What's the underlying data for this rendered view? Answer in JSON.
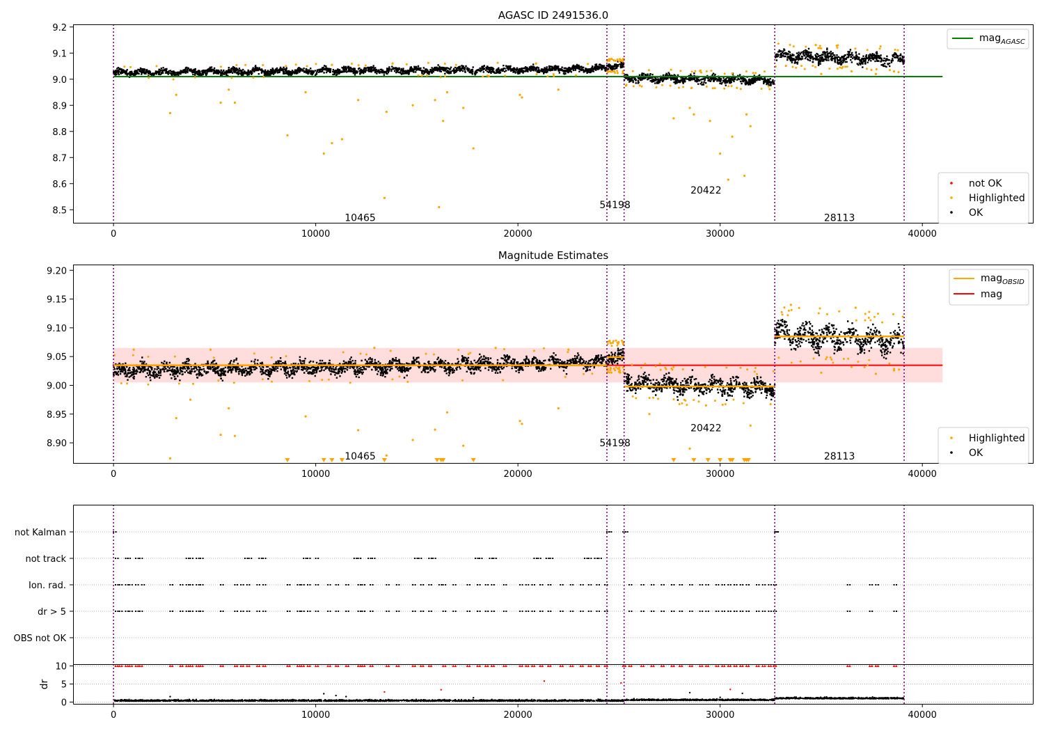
{
  "chart_data": [
    {
      "type": "scatter",
      "title": "AGASC ID 2491536.0",
      "xlim": [
        -2000,
        45500
      ],
      "ylim": [
        8.45,
        9.21
      ],
      "xticks": [
        0,
        10000,
        20000,
        30000,
        40000
      ],
      "yticks": [
        8.5,
        8.6,
        8.7,
        8.8,
        8.9,
        9.0,
        9.1,
        9.2
      ],
      "vlines": [
        0,
        24400,
        25250,
        32700,
        39100
      ],
      "obs_labels": [
        {
          "text": "10465",
          "x": 12200,
          "y": 8.47
        },
        {
          "text": "54198",
          "x": 24800,
          "y": 8.52
        },
        {
          "text": "20422",
          "x": 29300,
          "y": 8.575
        },
        {
          "text": "28113",
          "x": 35900,
          "y": 8.47
        }
      ],
      "hline": {
        "name": "mag_AGASC",
        "value": 9.01,
        "x0": 0,
        "x1": 41000,
        "color": "#008000"
      },
      "segments": [
        {
          "x0": 0,
          "x1": 24400,
          "m0": 9.025,
          "m1": 9.04,
          "spread": 0.04
        },
        {
          "x0": 24400,
          "x1": 25250,
          "m0": 9.05,
          "m1": 9.05,
          "spread": 0.04
        },
        {
          "x0": 25250,
          "x1": 32700,
          "m0": 9.005,
          "m1": 8.995,
          "spread": 0.05
        },
        {
          "x0": 32700,
          "x1": 39100,
          "m0": 9.09,
          "m1": 9.075,
          "spread": 0.07
        }
      ],
      "highlighted": [
        [
          2800,
          8.87
        ],
        [
          3100,
          8.94
        ],
        [
          5300,
          8.91
        ],
        [
          6000,
          8.91
        ],
        [
          5700,
          8.96
        ],
        [
          8600,
          8.785
        ],
        [
          9500,
          8.95
        ],
        [
          10400,
          8.715
        ],
        [
          10800,
          8.755
        ],
        [
          11300,
          8.77
        ],
        [
          12100,
          8.92
        ],
        [
          13500,
          8.875
        ],
        [
          13400,
          8.545
        ],
        [
          14800,
          8.9
        ],
        [
          16100,
          8.51
        ],
        [
          15900,
          8.92
        ],
        [
          16300,
          8.84
        ],
        [
          16500,
          8.95
        ],
        [
          17300,
          8.89
        ],
        [
          17800,
          8.735
        ],
        [
          20100,
          8.94
        ],
        [
          20200,
          8.93
        ],
        [
          22000,
          8.96
        ],
        [
          27700,
          8.85
        ],
        [
          28700,
          8.865
        ],
        [
          28500,
          8.89
        ],
        [
          29500,
          8.84
        ],
        [
          30000,
          8.715
        ],
        [
          30400,
          8.615
        ],
        [
          30600,
          8.78
        ],
        [
          31200,
          8.63
        ],
        [
          31300,
          8.865
        ],
        [
          31500,
          8.82
        ],
        [
          10800,
          9.055
        ],
        [
          13800,
          9.06
        ],
        [
          20900,
          9.06
        ],
        [
          35000,
          9.02
        ],
        [
          36500,
          9.03
        ],
        [
          37700,
          9.02
        ],
        [
          38600,
          9.03
        ]
      ],
      "legend_upper": [
        {
          "name": "mag_AGASC",
          "color": "#008000"
        }
      ],
      "legend_lower": [
        {
          "name": "not OK",
          "color": "#ff0000"
        },
        {
          "name": "Highlighted",
          "color": "#ffa500"
        },
        {
          "name": "OK",
          "color": "#000000"
        }
      ],
      "legend_placement": [
        "upper right",
        "lower right"
      ]
    },
    {
      "type": "scatter",
      "title": "Magnitude Estimates",
      "xlim": [
        -2000,
        45500
      ],
      "ylim": [
        8.865,
        9.21
      ],
      "xticks": [
        0,
        10000,
        20000,
        30000,
        40000
      ],
      "yticks": [
        8.9,
        8.95,
        9.0,
        9.05,
        9.1,
        9.15,
        9.2
      ],
      "vlines": [
        0,
        24400,
        25250,
        32700,
        39100
      ],
      "obs_labels": [
        {
          "text": "10465",
          "x": 12200,
          "y": 8.877
        },
        {
          "text": "54198",
          "x": 24800,
          "y": 8.9
        },
        {
          "text": "20422",
          "x": 29300,
          "y": 8.926
        },
        {
          "text": "28113",
          "x": 35900,
          "y": 8.877
        }
      ],
      "band": {
        "lo": 9.005,
        "hi": 9.065,
        "x0": 0,
        "x1": 41000,
        "color": "#ffdddd"
      },
      "mag": {
        "name": "mag",
        "value": 9.035,
        "color": "#ff0000"
      },
      "mag_obsid": [
        {
          "x0": 0,
          "x1": 24400,
          "value": 9.035
        },
        {
          "x0": 24400,
          "x1": 25250,
          "value": 9.049
        },
        {
          "x0": 25250,
          "x1": 32700,
          "value": 8.998
        },
        {
          "x0": 32700,
          "x1": 39100,
          "value": 9.085
        }
      ],
      "segments": [
        {
          "x0": 0,
          "x1": 24400,
          "m0": 9.025,
          "m1": 9.04,
          "spread": 0.04
        },
        {
          "x0": 24400,
          "x1": 25250,
          "m0": 9.05,
          "m1": 9.05,
          "spread": 0.04
        },
        {
          "x0": 25250,
          "x1": 32700,
          "m0": 9.005,
          "m1": 8.995,
          "spread": 0.05
        },
        {
          "x0": 32700,
          "x1": 39100,
          "m0": 9.09,
          "m1": 9.075,
          "spread": 0.07
        }
      ],
      "highlighted": [
        [
          2800,
          8.873
        ],
        [
          3100,
          8.943
        ],
        [
          3800,
          8.975
        ],
        [
          5300,
          8.914
        ],
        [
          6000,
          8.912
        ],
        [
          5700,
          8.96
        ],
        [
          9500,
          8.946
        ],
        [
          12100,
          8.922
        ],
        [
          13500,
          8.878
        ],
        [
          14800,
          8.905
        ],
        [
          15900,
          8.923
        ],
        [
          16500,
          8.953
        ],
        [
          17300,
          8.895
        ],
        [
          20100,
          8.938
        ],
        [
          20200,
          8.933
        ],
        [
          22000,
          8.96
        ],
        [
          28500,
          8.89
        ],
        [
          29300,
          8.965
        ],
        [
          31500,
          8.93
        ],
        [
          26500,
          8.95
        ],
        [
          1000,
          9.062
        ],
        [
          4800,
          9.062
        ],
        [
          12900,
          9.065
        ],
        [
          13700,
          9.06
        ],
        [
          18900,
          9.065
        ],
        [
          20800,
          9.06
        ],
        [
          22500,
          9.062
        ],
        [
          35000,
          9.022
        ],
        [
          36500,
          9.032
        ],
        [
          37700,
          9.02
        ],
        [
          38600,
          9.026
        ],
        [
          33500,
          9.14
        ],
        [
          36700,
          9.135
        ]
      ],
      "clipped_markers": [
        8600,
        10400,
        10800,
        11300,
        13400,
        16000,
        16200,
        16300,
        17800,
        27700,
        28700,
        29400,
        30000,
        30500,
        30600,
        31200,
        31300,
        31400
      ],
      "legend_upper": [
        {
          "name": "mag_OBSID",
          "color": "#ffa500"
        },
        {
          "name": "mag",
          "color": "#ff0000"
        }
      ],
      "legend_lower": [
        {
          "name": "Highlighted",
          "color": "#ffa500"
        },
        {
          "name": "OK",
          "color": "#000000"
        }
      ],
      "legend_placement": [
        "upper right",
        "lower right"
      ]
    },
    {
      "type": "scatter",
      "xlim": [
        -2000,
        45500
      ],
      "flag_rows": [
        "not Kalman",
        "not track",
        "Ion. rad.",
        "dr > 5",
        "OBS not OK"
      ],
      "vlines": [
        0,
        24400,
        25250,
        32700,
        39100
      ],
      "flags": {
        "not Kalman": [
          0,
          24400,
          24500,
          25200,
          25300,
          32700,
          32750
        ],
        "not track": [
          100,
          600,
          700,
          1100,
          1300,
          3600,
          3800,
          4100,
          4300,
          6500,
          6700,
          7200,
          7400,
          9400,
          9600,
          10000,
          11900,
          12100,
          12600,
          12800,
          14900,
          15100,
          15600,
          15800,
          17900,
          18100,
          18600,
          18800,
          20800,
          21000,
          21400,
          21600,
          23300,
          23500,
          23800,
          24000
        ],
        "Ion. rad.": [
          100,
          300,
          600,
          800,
          1100,
          1400,
          2800,
          3300,
          3600,
          3800,
          4100,
          4300,
          5300,
          6000,
          6300,
          6600,
          7100,
          7400,
          8600,
          9100,
          9300,
          9600,
          10000,
          10600,
          11000,
          11500,
          12100,
          12300,
          12700,
          13500,
          14000,
          14800,
          15200,
          15600,
          16100,
          16300,
          16800,
          17500,
          18000,
          18400,
          18700,
          19300,
          20100,
          20400,
          20700,
          21100,
          21500,
          22100,
          22600,
          23100,
          23500,
          23900,
          24300,
          25500,
          26100,
          26600,
          27100,
          27600,
          28000,
          28500,
          29000,
          29300,
          29800,
          30100,
          30400,
          30700,
          31000,
          31300,
          31800,
          32100,
          32400,
          32650,
          36300,
          37400,
          37700,
          38600
        ],
        "dr > 5": [
          100,
          300,
          600,
          800,
          1100,
          1300,
          2800,
          3300,
          3600,
          3800,
          4100,
          4300,
          5300,
          6000,
          6300,
          6600,
          7100,
          7400,
          8600,
          9100,
          9300,
          9600,
          10000,
          10600,
          11000,
          11500,
          12100,
          12300,
          12700,
          13500,
          14000,
          14800,
          15200,
          15600,
          16300,
          16800,
          17500,
          18000,
          18400,
          18700,
          19300,
          20100,
          20400,
          20700,
          21100,
          21500,
          22100,
          22600,
          23100,
          23500,
          23900,
          24300,
          25500,
          26100,
          26600,
          27100,
          27600,
          28000,
          28500,
          29000,
          29300,
          29800,
          30100,
          30400,
          30700,
          31000,
          31300,
          31800,
          32100,
          32400,
          32650,
          36300,
          37400,
          38600
        ],
        "OBS not OK": []
      }
    },
    {
      "type": "scatter",
      "ylabel": "dr",
      "xlim": [
        -2000,
        45500
      ],
      "ylim": [
        -0.5,
        10.5
      ],
      "xticks": [
        0,
        10000,
        20000,
        30000,
        40000
      ],
      "yticks": [
        0,
        5,
        10
      ],
      "vlines": [
        0,
        24400,
        25250,
        32700,
        39100
      ],
      "not_ok_capped": [
        100,
        300,
        600,
        800,
        1100,
        1300,
        2800,
        3300,
        3600,
        3800,
        4100,
        4300,
        5300,
        6000,
        6300,
        6600,
        7100,
        7400,
        8600,
        9100,
        9300,
        9600,
        10000,
        10600,
        11000,
        11500,
        12100,
        12300,
        12700,
        13500,
        14000,
        14800,
        15200,
        15600,
        16300,
        16800,
        17500,
        18000,
        18400,
        18700,
        19300,
        20100,
        20400,
        20700,
        21100,
        21500,
        22100,
        22600,
        23100,
        23500,
        23900,
        24300,
        25200,
        25500,
        26100,
        26600,
        27100,
        27600,
        28000,
        28500,
        29000,
        29300,
        29800,
        30100,
        30400,
        30700,
        31000,
        31300,
        31800,
        32100,
        32400,
        32650,
        36300,
        37400,
        37700,
        38600
      ],
      "not_ok_points": [
        [
          13400,
          2.8
        ],
        [
          16200,
          3.4
        ],
        [
          21300,
          5.8
        ],
        [
          25100,
          5.3
        ],
        [
          30500,
          3.5
        ]
      ],
      "outlier_points": [
        [
          2800,
          1.5
        ],
        [
          10400,
          2.3
        ],
        [
          11000,
          1.8
        ],
        [
          11500,
          1.5
        ],
        [
          17800,
          1.2
        ],
        [
          28500,
          2.6
        ],
        [
          31100,
          2.4
        ],
        [
          30000,
          1.3
        ]
      ]
    }
  ]
}
